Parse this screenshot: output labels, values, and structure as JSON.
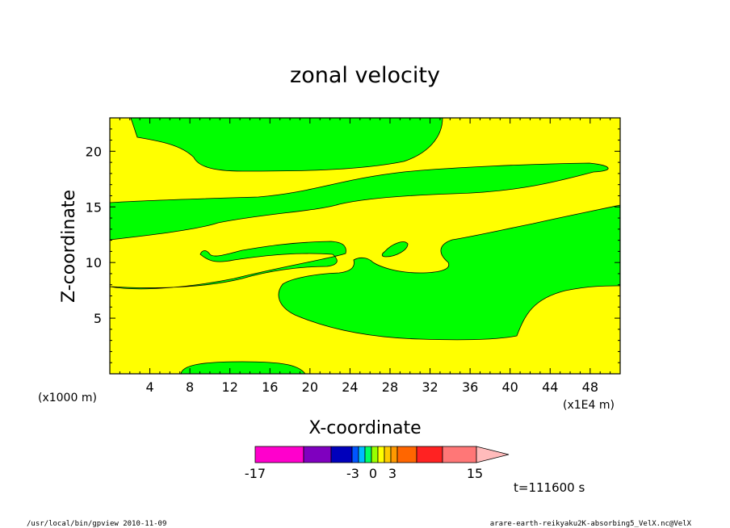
{
  "chart_data": {
    "type": "contour",
    "title": "zonal velocity",
    "xlabel": "X-coordinate",
    "ylabel": "Z-coordinate",
    "x_unit_left": "(x1000 m)",
    "x_unit_right": "(x1E4 m)",
    "xlim": [
      0,
      51
    ],
    "ylim": [
      0,
      23
    ],
    "x_ticks": [
      4,
      8,
      12,
      16,
      20,
      24,
      28,
      32,
      36,
      40,
      44,
      48
    ],
    "y_ticks": [
      5,
      10,
      15,
      20
    ],
    "fill_colors": {
      "negative": "#00ff00",
      "positive": "#ffff00"
    },
    "colorbar": {
      "levels": [
        -17,
        -11,
        -7,
        -3,
        -2,
        -1,
        0,
        1,
        2,
        3,
        5,
        9,
        15
      ],
      "colors": [
        "#ff00cc",
        "#7f00bf",
        "#0000bb",
        "#0055ff",
        "#00bbff",
        "#00ff66",
        "#99ff00",
        "#ffff00",
        "#ffcc00",
        "#ff9900",
        "#ff6600",
        "#ff2222",
        "#ff7777"
      ],
      "extension_color": "#ffbbbb",
      "tick_labels": [
        "-17",
        "-3",
        "0",
        "3",
        "15"
      ]
    },
    "time_label": "t=111600 s"
  },
  "footer": {
    "left": "/usr/local/bin/gpview   2010-11-09",
    "right": "arare-earth-reikyaku2K-absorbing5_VelX.nc@VelX"
  }
}
